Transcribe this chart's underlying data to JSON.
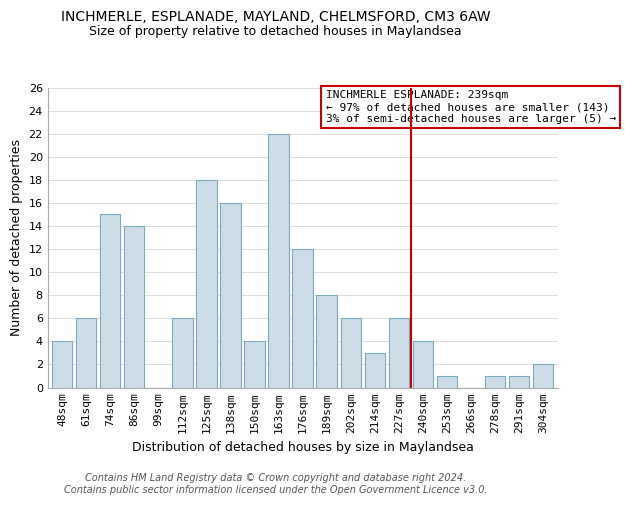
{
  "title": "INCHMERLE, ESPLANADE, MAYLAND, CHELMSFORD, CM3 6AW",
  "subtitle": "Size of property relative to detached houses in Maylandsea",
  "xlabel": "Distribution of detached houses by size in Maylandsea",
  "ylabel": "Number of detached properties",
  "bin_labels": [
    "48sqm",
    "61sqm",
    "74sqm",
    "86sqm",
    "99sqm",
    "112sqm",
    "125sqm",
    "138sqm",
    "150sqm",
    "163sqm",
    "176sqm",
    "189sqm",
    "202sqm",
    "214sqm",
    "227sqm",
    "240sqm",
    "253sqm",
    "266sqm",
    "278sqm",
    "291sqm",
    "304sqm"
  ],
  "bar_heights": [
    4,
    6,
    15,
    14,
    0,
    6,
    18,
    16,
    4,
    22,
    12,
    8,
    6,
    3,
    6,
    4,
    1,
    0,
    1,
    1,
    2
  ],
  "bar_color": "#ccdde8",
  "bar_edge_color": "#7aaabf",
  "vline_x_index": 15,
  "vline_color": "#cc0000",
  "ylim": [
    0,
    26
  ],
  "yticks": [
    0,
    2,
    4,
    6,
    8,
    10,
    12,
    14,
    16,
    18,
    20,
    22,
    24,
    26
  ],
  "annotation_title": "INCHMERLE ESPLANADE: 239sqm",
  "annotation_line1": "← 97% of detached houses are smaller (143)",
  "annotation_line2": "3% of semi-detached houses are larger (5) →",
  "annotation_box_color": "#ffffff",
  "annotation_box_edge": "#cc0000",
  "footer_line1": "Contains HM Land Registry data © Crown copyright and database right 2024.",
  "footer_line2": "Contains public sector information licensed under the Open Government Licence v3.0.",
  "title_fontsize": 10,
  "subtitle_fontsize": 9,
  "axis_label_fontsize": 9,
  "tick_fontsize": 8,
  "annotation_fontsize": 8,
  "footer_fontsize": 7
}
